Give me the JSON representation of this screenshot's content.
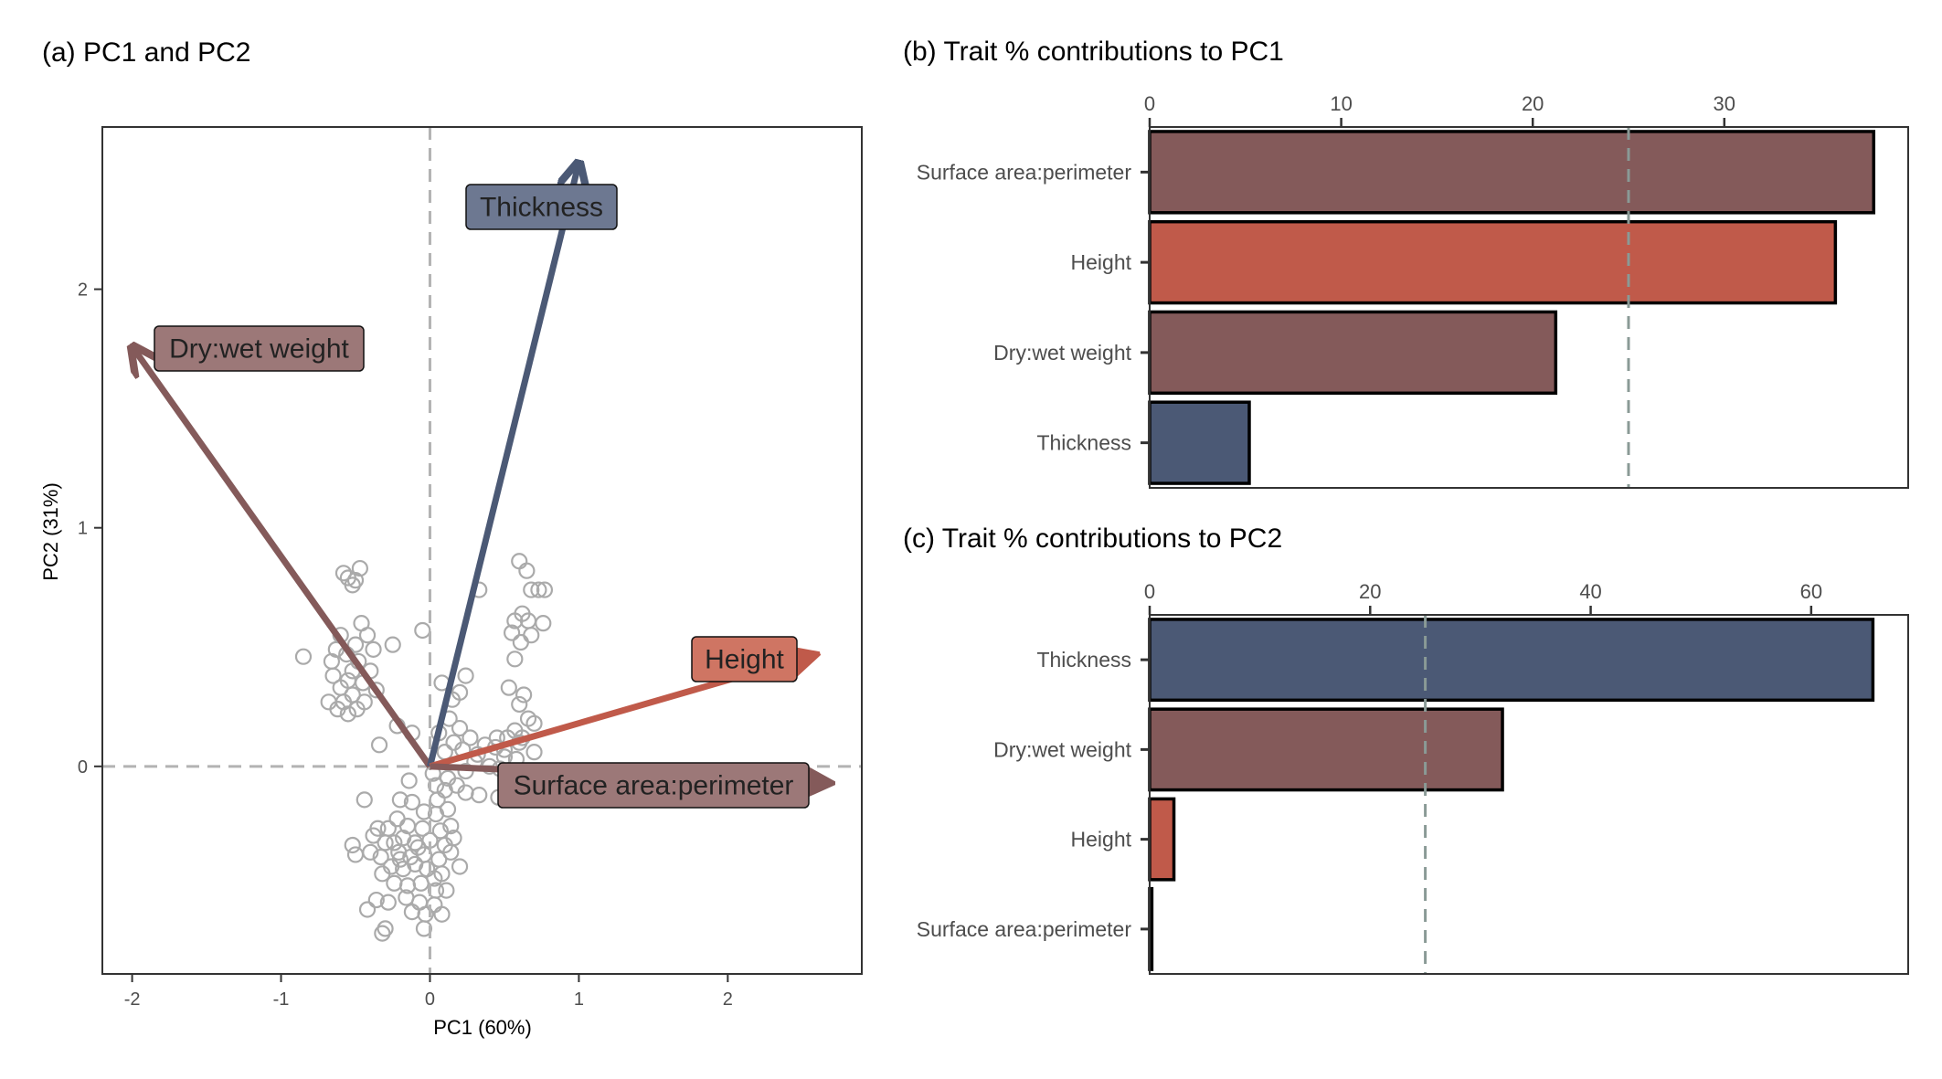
{
  "panels": {
    "a": {
      "title": "(a) PC1 and PC2",
      "chart_data": {
        "type": "scatter",
        "xlabel": "PC1 (60%)",
        "ylabel": "PC2 (31%)",
        "xlim": [
          -2.2,
          2.9
        ],
        "ylim": [
          -0.87,
          2.68
        ],
        "xticks": [
          -2,
          -1,
          0,
          1,
          2
        ],
        "xtick_labels": [
          "-2",
          "-1",
          "0",
          "1",
          "2"
        ],
        "yticks": [
          0,
          1,
          2
        ],
        "ytick_labels": [
          "0",
          "1",
          "2"
        ],
        "reference_lines": {
          "x": 0,
          "y": 0,
          "style": "dashed",
          "color": "#b3b3b3"
        },
        "point_color": "#aaaaaa",
        "points": [
          [
            -0.58,
            0.81
          ],
          [
            -0.52,
            0.76
          ],
          [
            -0.47,
            0.83
          ],
          [
            -0.55,
            0.79
          ],
          [
            -0.5,
            0.78
          ],
          [
            -0.46,
            0.6
          ],
          [
            -0.6,
            0.55
          ],
          [
            -0.5,
            0.51
          ],
          [
            -0.42,
            0.55
          ],
          [
            -0.38,
            0.49
          ],
          [
            -0.63,
            0.49
          ],
          [
            -0.56,
            0.47
          ],
          [
            -0.48,
            0.44
          ],
          [
            -0.52,
            0.4
          ],
          [
            -0.45,
            0.35
          ],
          [
            -0.65,
            0.38
          ],
          [
            -0.6,
            0.33
          ],
          [
            -0.58,
            0.27
          ],
          [
            -0.52,
            0.3
          ],
          [
            -0.49,
            0.24
          ],
          [
            -0.68,
            0.27
          ],
          [
            -0.62,
            0.24
          ],
          [
            -0.55,
            0.22
          ],
          [
            -0.4,
            0.4
          ],
          [
            -0.44,
            0.27
          ],
          [
            -0.85,
            0.46
          ],
          [
            -0.25,
            0.51
          ],
          [
            -0.66,
            0.44
          ],
          [
            -0.36,
            0.32
          ],
          [
            -0.55,
            0.36
          ],
          [
            -0.34,
            0.09
          ],
          [
            -0.22,
            0.17
          ],
          [
            -0.12,
            0.14
          ],
          [
            -0.05,
            0.57
          ],
          [
            0.08,
            0.35
          ],
          [
            0.15,
            0.28
          ],
          [
            0.24,
            0.38
          ],
          [
            0.2,
            0.31
          ],
          [
            0.13,
            0.2
          ],
          [
            0.2,
            0.16
          ],
          [
            0.27,
            0.12
          ],
          [
            0.16,
            0.1
          ],
          [
            0.1,
            0.06
          ],
          [
            0.06,
            0.14
          ],
          [
            0.22,
            0.07
          ],
          [
            0.32,
            0.05
          ],
          [
            0.37,
            0.09
          ],
          [
            0.3,
            0.02
          ],
          [
            0.44,
            0.08
          ],
          [
            0.52,
            0.12
          ],
          [
            0.45,
            0.12
          ],
          [
            0.6,
            0.1
          ],
          [
            0.5,
            0.07
          ],
          [
            0.33,
            0.74
          ],
          [
            0.6,
            0.86
          ],
          [
            0.65,
            0.82
          ],
          [
            0.68,
            0.74
          ],
          [
            0.73,
            0.74
          ],
          [
            0.77,
            0.74
          ],
          [
            0.57,
            0.61
          ],
          [
            0.62,
            0.64
          ],
          [
            0.66,
            0.61
          ],
          [
            0.76,
            0.6
          ],
          [
            0.55,
            0.56
          ],
          [
            0.61,
            0.52
          ],
          [
            0.68,
            0.55
          ],
          [
            0.57,
            0.45
          ],
          [
            0.53,
            0.33
          ],
          [
            0.63,
            0.3
          ],
          [
            0.6,
            0.26
          ],
          [
            0.66,
            0.2
          ],
          [
            0.7,
            0.18
          ],
          [
            0.57,
            0.15
          ],
          [
            0.62,
            0.12
          ],
          [
            0.7,
            0.06
          ],
          [
            0.5,
            0.04
          ],
          [
            0.4,
            0.0
          ],
          [
            0.04,
            -0.08
          ],
          [
            0.12,
            -0.05
          ],
          [
            0.1,
            -0.1
          ],
          [
            0.18,
            -0.08
          ],
          [
            0.05,
            -0.14
          ],
          [
            0.24,
            -0.11
          ],
          [
            0.33,
            -0.12
          ],
          [
            0.46,
            -0.13
          ],
          [
            0.52,
            -0.11
          ],
          [
            0.55,
            -0.07
          ],
          [
            0.47,
            -0.01
          ],
          [
            0.58,
            0.03
          ],
          [
            -0.12,
            -0.15
          ],
          [
            -0.04,
            -0.19
          ],
          [
            0.04,
            -0.2
          ],
          [
            0.12,
            -0.18
          ],
          [
            -0.15,
            -0.25
          ],
          [
            -0.05,
            -0.26
          ],
          [
            0.07,
            -0.27
          ],
          [
            0.14,
            -0.25
          ],
          [
            -0.22,
            -0.22
          ],
          [
            -0.28,
            -0.26
          ],
          [
            -0.18,
            -0.3
          ],
          [
            -0.1,
            -0.32
          ],
          [
            0.0,
            -0.31
          ],
          [
            0.1,
            -0.33
          ],
          [
            -0.3,
            -0.32
          ],
          [
            -0.21,
            -0.36
          ],
          [
            -0.13,
            -0.38
          ],
          [
            -0.04,
            -0.37
          ],
          [
            0.06,
            -0.39
          ],
          [
            0.14,
            -0.36
          ],
          [
            -0.26,
            -0.42
          ],
          [
            -0.18,
            -0.43
          ],
          [
            -0.1,
            -0.41
          ],
          [
            -0.02,
            -0.43
          ],
          [
            0.08,
            -0.45
          ],
          [
            -0.33,
            -0.38
          ],
          [
            -0.38,
            -0.29
          ],
          [
            -0.4,
            -0.36
          ],
          [
            -0.32,
            -0.45
          ],
          [
            -0.24,
            -0.49
          ],
          [
            -0.15,
            -0.5
          ],
          [
            -0.06,
            -0.49
          ],
          [
            0.04,
            -0.52
          ],
          [
            -0.16,
            -0.55
          ],
          [
            -0.07,
            -0.57
          ],
          [
            0.03,
            -0.58
          ],
          [
            -0.12,
            -0.61
          ],
          [
            -0.03,
            -0.62
          ],
          [
            -0.28,
            -0.57
          ],
          [
            -0.42,
            -0.6
          ],
          [
            -0.3,
            -0.68
          ],
          [
            -0.36,
            -0.56
          ],
          [
            -0.32,
            -0.7
          ],
          [
            -0.04,
            -0.68
          ],
          [
            0.03,
            -0.47
          ],
          [
            -0.08,
            -0.34
          ],
          [
            -0.2,
            -0.14
          ],
          [
            -0.24,
            -0.32
          ],
          [
            -0.44,
            -0.14
          ],
          [
            -0.52,
            -0.33
          ],
          [
            -0.5,
            -0.37
          ],
          [
            -0.35,
            -0.26
          ],
          [
            -0.2,
            -0.39
          ],
          [
            0.16,
            -0.3
          ],
          [
            0.2,
            -0.42
          ],
          [
            0.11,
            -0.52
          ],
          [
            0.08,
            -0.62
          ],
          [
            -0.14,
            -0.06
          ],
          [
            0.02,
            -0.03
          ],
          [
            0.24,
            -0.02
          ]
        ],
        "vectors": [
          {
            "name": "Dry:wet weight",
            "x": -2.0,
            "y": 1.76,
            "color": "#845a5a"
          },
          {
            "name": "Thickness",
            "x": 1.0,
            "y": 2.53,
            "color": "#4b5975"
          },
          {
            "name": "Height",
            "x": 2.6,
            "y": 0.47,
            "color": "#c05a4a"
          },
          {
            "name": "Surface area:perimeter",
            "x": 2.7,
            "y": -0.07,
            "color": "#845a5a"
          }
        ]
      }
    },
    "b": {
      "title": "(b) Trait % contributions to PC1",
      "chart_data": {
        "type": "bar",
        "orientation": "horizontal",
        "xaxis_position": "top",
        "categories": [
          "Surface area:perimeter",
          "Height",
          "Dry:wet weight",
          "Thickness"
        ],
        "values": [
          37.8,
          35.8,
          21.2,
          5.2
        ],
        "colors": [
          "#845a5a",
          "#c05a4a",
          "#845a5a",
          "#4b5975"
        ],
        "xlim": [
          0,
          39.6
        ],
        "xticks": [
          0,
          10,
          20,
          30
        ],
        "xtick_labels": [
          "0",
          "10",
          "20",
          "30"
        ],
        "reference_line": {
          "x": 25,
          "style": "dashed",
          "color": "#8a9a96"
        }
      }
    },
    "c": {
      "title": "(c) Trait % contributions to PC2",
      "chart_data": {
        "type": "bar",
        "orientation": "horizontal",
        "xaxis_position": "top",
        "categories": [
          "Thickness",
          "Dry:wet weight",
          "Height",
          "Surface area:perimeter"
        ],
        "values": [
          65.6,
          32.0,
          2.2,
          0.2
        ],
        "colors": [
          "#4b5975",
          "#845a5a",
          "#c05a4a",
          "#845a5a"
        ],
        "xlim": [
          0,
          68.8
        ],
        "xticks": [
          0,
          20,
          40,
          60
        ],
        "xtick_labels": [
          "0",
          "20",
          "40",
          "60"
        ],
        "reference_line": {
          "x": 25,
          "style": "dashed",
          "color": "#8a9a96"
        }
      }
    }
  }
}
